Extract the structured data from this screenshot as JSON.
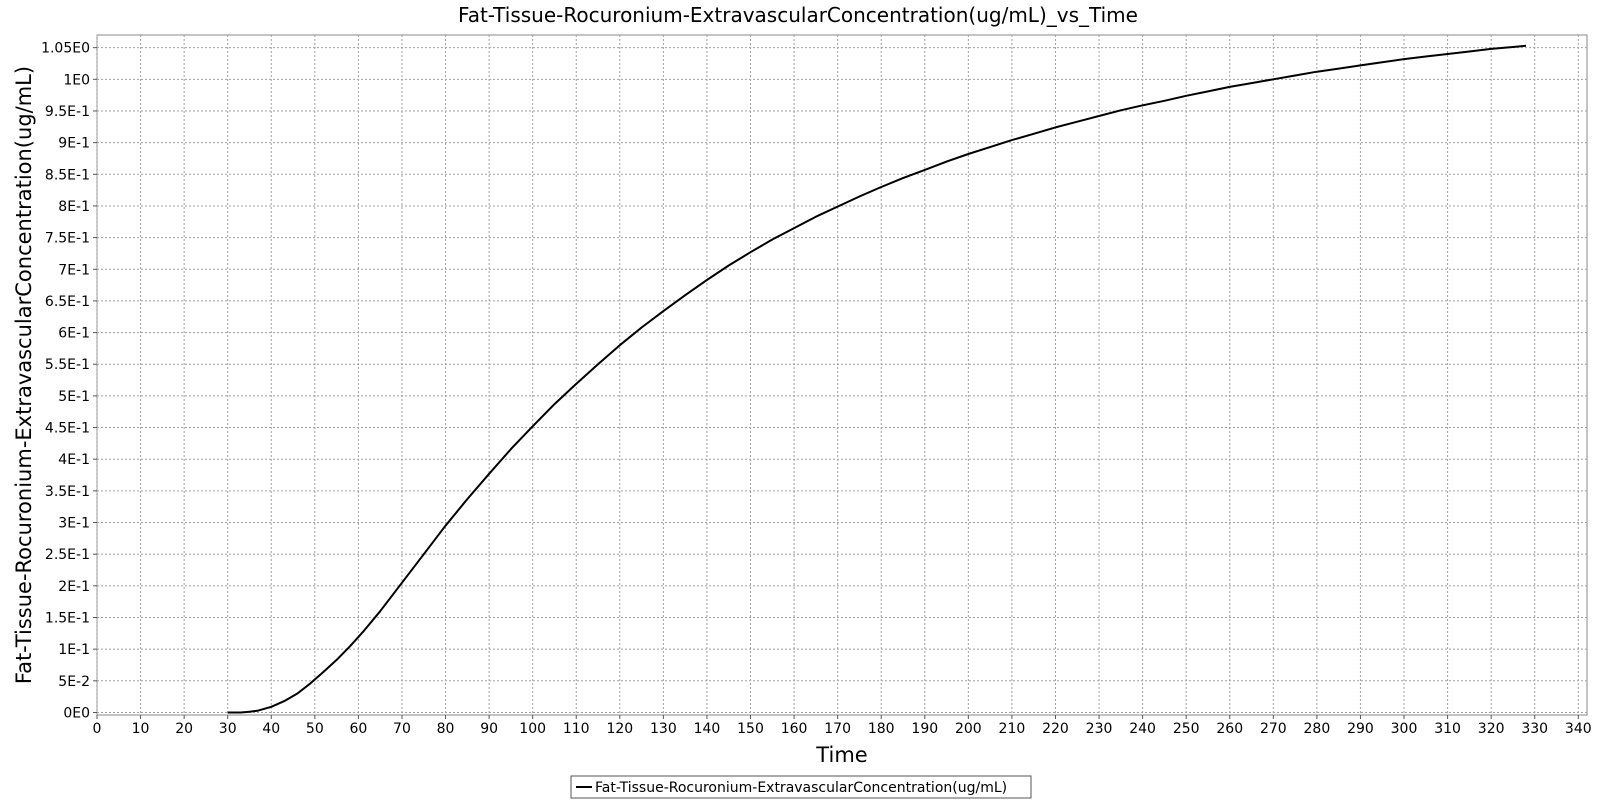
{
  "chart_data": {
    "type": "line",
    "title": "Fat-Tissue-Rocuronium-ExtravascularConcentration(ug/mL)_vs_Time",
    "xlabel": "Time",
    "ylabel": "Fat-Tissue-Rocuronium-ExtravascularConcentration(ug/mL)",
    "xlim": [
      0,
      342
    ],
    "ylim": [
      -0.004,
      1.07
    ],
    "x_ticks": [
      0,
      10,
      20,
      30,
      40,
      50,
      60,
      70,
      80,
      90,
      100,
      110,
      120,
      130,
      140,
      150,
      160,
      170,
      180,
      190,
      200,
      210,
      220,
      230,
      240,
      250,
      260,
      270,
      280,
      290,
      300,
      310,
      320,
      330,
      340
    ],
    "y_ticks": [
      {
        "value": 0,
        "label": "0E0"
      },
      {
        "value": 0.05,
        "label": "5E-2"
      },
      {
        "value": 0.1,
        "label": "1E-1"
      },
      {
        "value": 0.15,
        "label": "1.5E-1"
      },
      {
        "value": 0.2,
        "label": "2E-1"
      },
      {
        "value": 0.25,
        "label": "2.5E-1"
      },
      {
        "value": 0.3,
        "label": "3E-1"
      },
      {
        "value": 0.35,
        "label": "3.5E-1"
      },
      {
        "value": 0.4,
        "label": "4E-1"
      },
      {
        "value": 0.45,
        "label": "4.5E-1"
      },
      {
        "value": 0.5,
        "label": "5E-1"
      },
      {
        "value": 0.55,
        "label": "5.5E-1"
      },
      {
        "value": 0.6,
        "label": "6E-1"
      },
      {
        "value": 0.65,
        "label": "6.5E-1"
      },
      {
        "value": 0.7,
        "label": "7E-1"
      },
      {
        "value": 0.75,
        "label": "7.5E-1"
      },
      {
        "value": 0.8,
        "label": "8E-1"
      },
      {
        "value": 0.85,
        "label": "8.5E-1"
      },
      {
        "value": 0.9,
        "label": "9E-1"
      },
      {
        "value": 0.95,
        "label": "9.5E-1"
      },
      {
        "value": 1.0,
        "label": "1E0"
      },
      {
        "value": 1.05,
        "label": "1.05E0"
      }
    ],
    "grid": true,
    "legend_position": "bottom-center",
    "series": [
      {
        "name": "Fat-Tissue-Rocuronium-ExtravascularConcentration(ug/mL)",
        "color": "#000000",
        "x": [
          30,
          33,
          35,
          37,
          40,
          43,
          46,
          49,
          52,
          55,
          58,
          61,
          65,
          70,
          75,
          80,
          85,
          90,
          95,
          100,
          105,
          110,
          115,
          120,
          125,
          130,
          135,
          140,
          145,
          150,
          155,
          160,
          165,
          170,
          175,
          180,
          185,
          190,
          195,
          200,
          205,
          210,
          215,
          220,
          225,
          230,
          235,
          240,
          245,
          250,
          255,
          260,
          265,
          270,
          275,
          280,
          285,
          290,
          295,
          300,
          305,
          310,
          315,
          320,
          325,
          328
        ],
        "y": [
          0.0,
          0.0,
          0.001,
          0.003,
          0.009,
          0.018,
          0.03,
          0.046,
          0.064,
          0.083,
          0.104,
          0.127,
          0.16,
          0.205,
          0.25,
          0.295,
          0.337,
          0.377,
          0.416,
          0.452,
          0.487,
          0.519,
          0.55,
          0.58,
          0.608,
          0.634,
          0.659,
          0.683,
          0.706,
          0.727,
          0.747,
          0.765,
          0.783,
          0.799,
          0.815,
          0.83,
          0.844,
          0.857,
          0.87,
          0.882,
          0.893,
          0.904,
          0.914,
          0.924,
          0.933,
          0.942,
          0.951,
          0.959,
          0.966,
          0.974,
          0.981,
          0.988,
          0.994,
          1.0,
          1.006,
          1.012,
          1.017,
          1.022,
          1.027,
          1.032,
          1.036,
          1.04,
          1.044,
          1.048,
          1.051,
          1.053
        ]
      }
    ]
  }
}
